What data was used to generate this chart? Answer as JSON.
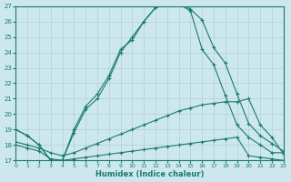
{
  "xlabel": "Humidex (Indice chaleur)",
  "xlim": [
    0,
    23
  ],
  "ylim": [
    17,
    27
  ],
  "yticks": [
    17,
    18,
    19,
    20,
    21,
    22,
    23,
    24,
    25,
    26,
    27
  ],
  "xticks": [
    0,
    1,
    2,
    3,
    4,
    5,
    6,
    7,
    8,
    9,
    10,
    11,
    12,
    13,
    14,
    15,
    16,
    17,
    18,
    19,
    20,
    21,
    22,
    23
  ],
  "bg_color": "#cde8ec",
  "line_color": "#1a7a6e",
  "grid_color": "#afd0d6",
  "curve1_x": [
    0,
    1,
    2,
    3,
    4,
    5,
    6,
    7,
    8,
    9,
    10,
    11,
    12,
    13,
    14,
    15,
    16,
    17,
    18,
    19,
    20,
    21,
    22,
    23
  ],
  "curve1_y": [
    19.0,
    18.6,
    18.0,
    17.0,
    17.0,
    18.8,
    20.3,
    21.0,
    22.3,
    24.0,
    25.0,
    26.0,
    26.9,
    27.2,
    27.1,
    26.7,
    24.2,
    23.2,
    21.2,
    19.3,
    18.5,
    18.0,
    17.5,
    17.5
  ],
  "curve2_x": [
    0,
    1,
    2,
    3,
    4,
    5,
    6,
    7,
    8,
    9,
    10,
    11,
    12,
    13,
    14,
    15,
    16,
    17,
    18,
    19,
    20,
    21,
    22,
    23
  ],
  "curve2_y": [
    19.0,
    18.6,
    18.0,
    17.0,
    17.0,
    19.0,
    20.5,
    21.3,
    22.5,
    24.2,
    24.8,
    26.0,
    26.9,
    27.1,
    27.2,
    26.8,
    26.1,
    24.3,
    23.3,
    21.3,
    19.4,
    18.6,
    18.1,
    17.6
  ],
  "curve3_x": [
    0,
    1,
    2,
    3,
    4,
    5,
    6,
    7,
    8,
    9,
    10,
    11,
    12,
    13,
    14,
    15,
    16,
    17,
    18,
    19,
    20,
    21,
    22,
    23
  ],
  "curve3_y": [
    18.2,
    18.0,
    17.8,
    17.5,
    17.3,
    17.5,
    17.8,
    18.1,
    18.4,
    18.7,
    19.0,
    19.3,
    19.6,
    19.9,
    20.2,
    20.4,
    20.6,
    20.7,
    20.8,
    20.8,
    21.0,
    19.3,
    18.5,
    17.4
  ],
  "curve4_x": [
    0,
    1,
    2,
    3,
    4,
    5,
    6,
    7,
    8,
    9,
    10,
    11,
    12,
    13,
    14,
    15,
    16,
    17,
    18,
    19,
    20,
    21,
    22,
    23
  ],
  "curve4_y": [
    18.0,
    17.8,
    17.6,
    17.1,
    17.0,
    17.1,
    17.2,
    17.3,
    17.4,
    17.5,
    17.6,
    17.7,
    17.8,
    17.9,
    18.0,
    18.1,
    18.2,
    18.3,
    18.4,
    18.5,
    17.3,
    17.2,
    17.1,
    17.0
  ]
}
